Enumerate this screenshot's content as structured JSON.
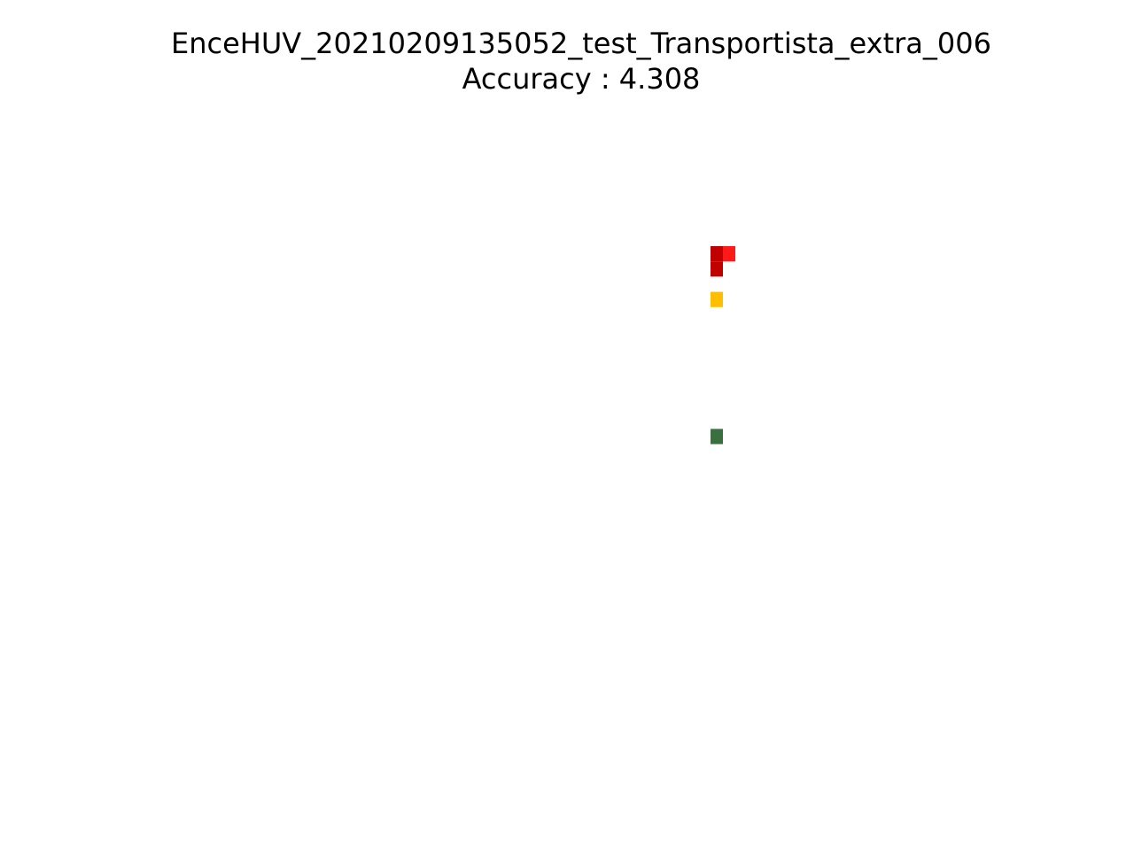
{
  "chart_data": {
    "type": "heatmap",
    "title": "EnceHUV_20210209135052_test_Transportista_extra_006",
    "subtitle": "Accuracy : 4.308",
    "grid": false,
    "axes_visible": false,
    "cells": [
      {
        "col": 0,
        "row": 0,
        "color": "#c00000"
      },
      {
        "col": 1,
        "row": 0,
        "color": "#ff1a1a"
      },
      {
        "col": 0,
        "row": 1,
        "color": "#c00000"
      },
      {
        "col": 0,
        "row": 3,
        "color": "#ffbf00"
      },
      {
        "col": 0,
        "row": 12,
        "color": "#3a7040"
      }
    ]
  }
}
